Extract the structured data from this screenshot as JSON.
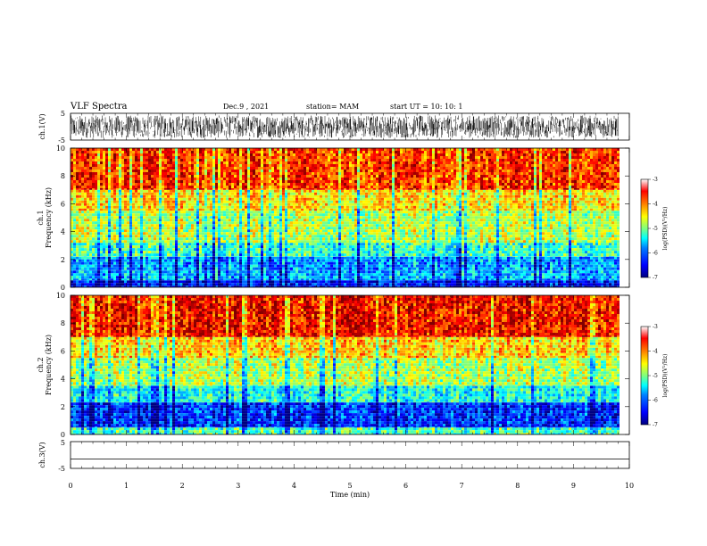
{
  "header": {
    "title": "VLF Spectra",
    "date": "Dec.9  , 2021",
    "station": "station= MAM",
    "start_ut": "start  UT =   10: 10: 1"
  },
  "panels": {
    "ch1_wave_label": "ch.1(V)",
    "ch1_spec_label_line1": "ch.1",
    "ch1_spec_label_line2": "Frequency  (kHz)",
    "ch2_spec_label_line1": "ch.2",
    "ch2_spec_label_line2": "Frequency  (kHz)",
    "ch3_wave_label": "ch.3(V)"
  },
  "colorbar": {
    "label": "log(PSD)(V²/Hz)",
    "ticks": [
      "-3",
      "-4",
      "-5",
      "-6",
      "-7"
    ]
  },
  "colors": {
    "jet": [
      "#00007f",
      "#0000ff",
      "#007fff",
      "#00ffff",
      "#7fff7f",
      "#ffff00",
      "#ff7f00",
      "#ff0000",
      "#7f0000"
    ]
  },
  "chart_data": [
    {
      "type": "line",
      "name": "ch.1 waveform",
      "ylabel": "ch.1(V)",
      "ylim": [
        -5,
        5
      ],
      "yticks": [
        "5",
        "-5"
      ],
      "xlim": [
        0,
        10
      ],
      "description_values": "dense broadband noise spanning roughly -4 to 4 V over 0 to 9.8 min"
    },
    {
      "type": "heatmap",
      "name": "ch.1 spectrogram",
      "ylabel": "Frequency  (kHz)",
      "ylim": [
        0,
        10
      ],
      "yticks": [
        "0",
        "2",
        "4",
        "6",
        "8",
        "10"
      ],
      "xlim": [
        0,
        10
      ],
      "data_end_min": 9.8,
      "zlim": [
        -7,
        -3
      ],
      "bands_log_psd": [
        {
          "freq_khz": [
            0,
            0.5
          ],
          "log_psd": -6.5
        },
        {
          "freq_khz": [
            0.5,
            1.2
          ],
          "log_psd": -5.8
        },
        {
          "freq_khz": [
            1.2,
            2.2
          ],
          "log_psd": -5.9
        },
        {
          "freq_khz": [
            2.2,
            3.2
          ],
          "log_psd": -5.3
        },
        {
          "freq_khz": [
            3.2,
            5.5
          ],
          "log_psd": -4.8
        },
        {
          "freq_khz": [
            5.5,
            7.0
          ],
          "log_psd": -4.4
        },
        {
          "freq_khz": [
            7.0,
            10.0
          ],
          "log_psd": -3.7
        }
      ]
    },
    {
      "type": "heatmap",
      "name": "ch.2 spectrogram",
      "ylabel": "Frequency  (kHz)",
      "ylim": [
        0,
        10
      ],
      "yticks": [
        "0",
        "2",
        "4",
        "6",
        "8",
        "10"
      ],
      "xlim": [
        0,
        10
      ],
      "data_end_min": 9.8,
      "zlim": [
        -7,
        -3
      ],
      "bands_log_psd": [
        {
          "freq_khz": [
            0,
            0.5
          ],
          "log_psd": -5.2
        },
        {
          "freq_khz": [
            0.5,
            2.3
          ],
          "log_psd": -6.3
        },
        {
          "freq_khz": [
            2.3,
            3.5
          ],
          "log_psd": -5.4
        },
        {
          "freq_khz": [
            3.5,
            5.5
          ],
          "log_psd": -4.8
        },
        {
          "freq_khz": [
            5.5,
            7.0
          ],
          "log_psd": -4.3
        },
        {
          "freq_khz": [
            7.0,
            10.0
          ],
          "log_psd": -3.5
        }
      ]
    },
    {
      "type": "line",
      "name": "ch.3 waveform",
      "ylabel": "ch.3(V)",
      "ylim": [
        -5,
        5
      ],
      "yticks": [
        "5",
        "-5"
      ],
      "xlim": [
        0,
        10
      ],
      "y_constant": -1.5
    }
  ],
  "xaxis": {
    "label": "Time  (min)",
    "ticks": [
      "0",
      "1",
      "2",
      "3",
      "4",
      "5",
      "6",
      "7",
      "8",
      "9",
      "10"
    ]
  }
}
